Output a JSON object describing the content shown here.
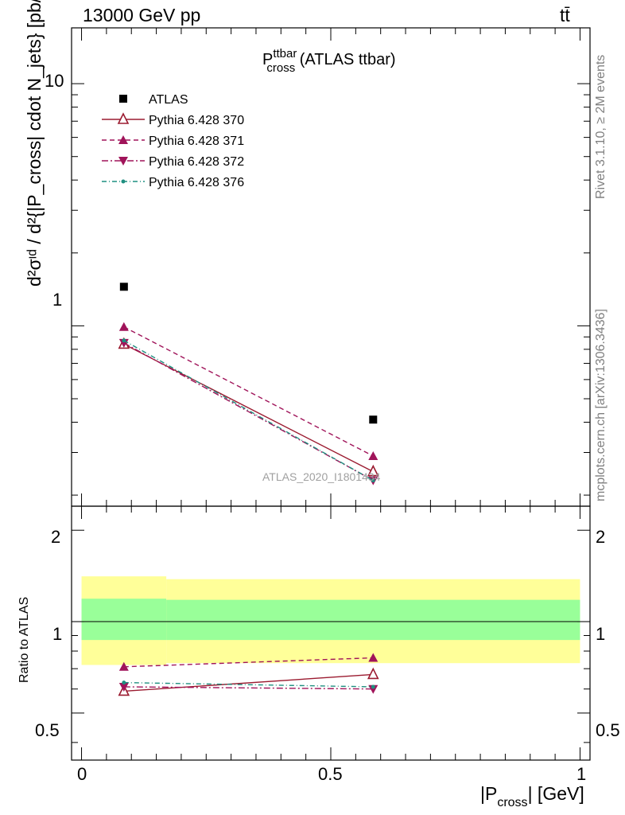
{
  "header": {
    "energy_label": "13000 GeV pp",
    "process_label": "tt̄",
    "title_main": "P",
    "title_sup": "ttbar",
    "title_sub": "cross",
    "title_suffix": "(ATLAS ttbar)",
    "ylabel_main": "d²σᶦᵈ / d²{|P_cross| cdot N_jets} [pb/GeV]",
    "ylabel_ratio": "Ratio to ATLAS",
    "xlabel_main": "|P",
    "xlabel_sub": "cross",
    "xlabel_unit": "| [GeV]",
    "side_note_1": "Rivet 3.1.10, ≥ 2M events",
    "side_note_2": "mcplots.cern.ch [arXiv:1306.3436]",
    "watermark": "ATLAS_2020_I1801434"
  },
  "axis_ticks": {
    "main_y": [
      "10",
      "1"
    ],
    "ratio_y": [
      "2",
      "1",
      "0.5"
    ],
    "x": [
      "0",
      "0.5",
      "1"
    ]
  },
  "chart_data": [
    {
      "type": "scatter",
      "panel": "main",
      "x_bins": [
        [
          0.0,
          0.17
        ],
        [
          0.17,
          1.0
        ]
      ],
      "x": [
        0.085,
        0.585
      ],
      "xlim": [
        -0.02,
        1.02
      ],
      "ylim": [
        0.18,
        17.0
      ],
      "y_scale": "log",
      "legend_position": "top-left",
      "series": [
        {
          "name": "ATLAS",
          "values": [
            1.45,
            0.41
          ],
          "color": "#000000",
          "marker": "square-filled",
          "line": "none"
        },
        {
          "name": "Pythia 6.428 370",
          "values": [
            0.84,
            0.25
          ],
          "color": "#9b1b30",
          "marker": "triangle-up-open",
          "line": "solid"
        },
        {
          "name": "Pythia 6.428 371",
          "values": [
            0.99,
            0.29
          ],
          "color": "#a0145a",
          "marker": "triangle-up-filled",
          "line": "dashed"
        },
        {
          "name": "Pythia 6.428 372",
          "values": [
            0.85,
            0.23
          ],
          "color": "#a0145a",
          "marker": "triangle-down-filled",
          "line": "dashdot"
        },
        {
          "name": "Pythia 6.428 376",
          "values": [
            0.87,
            0.23
          ],
          "color": "#1f8f80",
          "marker": "dot",
          "line": "dashdot-teal"
        }
      ]
    },
    {
      "type": "scatter",
      "panel": "ratio",
      "x": [
        0.085,
        0.585
      ],
      "xlim": [
        -0.02,
        1.02
      ],
      "ylim": [
        0.35,
        2.4
      ],
      "y_scale": "log",
      "bands": {
        "x_edges": [
          0.0,
          0.17,
          1.0
        ],
        "yellow_low": [
          0.72,
          0.73
        ],
        "yellow_high": [
          1.41,
          1.38
        ],
        "green_low": [
          0.87,
          0.87
        ],
        "green_high": [
          1.19,
          1.18
        ],
        "yellow_color": "#ffff99",
        "green_color": "#99ff99"
      },
      "reference_line": 1.0,
      "series": [
        {
          "name": "Pythia 6.428 370",
          "values": [
            0.59,
            0.67
          ],
          "color": "#9b1b30",
          "marker": "triangle-up-open",
          "line": "solid"
        },
        {
          "name": "Pythia 6.428 371",
          "values": [
            0.71,
            0.76
          ],
          "color": "#a0145a",
          "marker": "triangle-up-filled",
          "line": "dashed"
        },
        {
          "name": "Pythia 6.428 372",
          "values": [
            0.61,
            0.6
          ],
          "color": "#a0145a",
          "marker": "triangle-down-filled",
          "line": "dashdot"
        },
        {
          "name": "Pythia 6.428 376",
          "values": [
            0.63,
            0.61
          ],
          "color": "#1f8f80",
          "marker": "dot",
          "line": "dashdot-teal"
        }
      ]
    }
  ]
}
